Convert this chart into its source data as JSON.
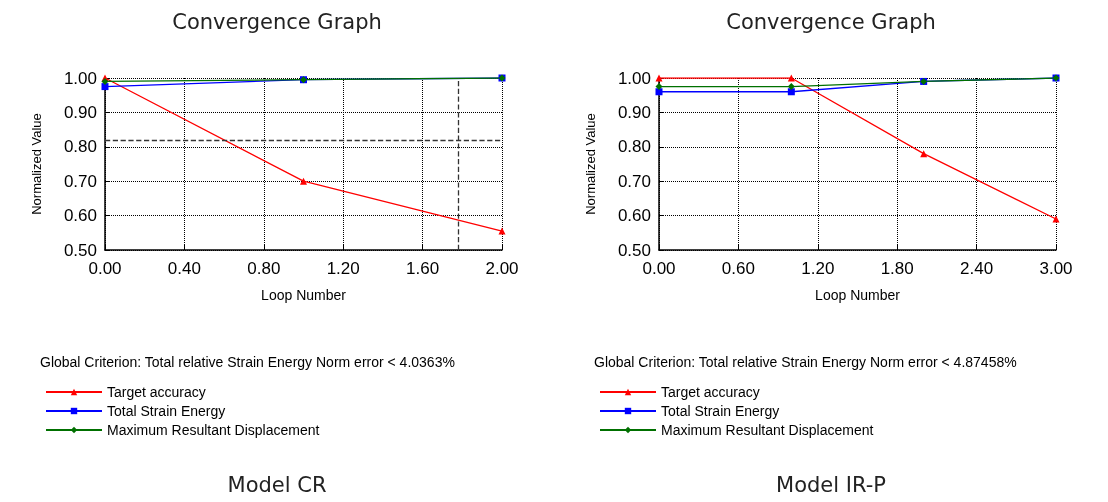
{
  "chart_data": [
    {
      "type": "line",
      "title": "Convergence Graph",
      "xlabel": "Loop Number",
      "ylabel": "Normalized Value",
      "x": [
        0,
        1,
        2
      ],
      "series": [
        {
          "name": "Target accuracy",
          "color": "#ff0000",
          "marker": "triangle",
          "values": [
            1.0,
            0.7,
            0.555
          ]
        },
        {
          "name": "Total Strain Energy",
          "color": "#0000ff",
          "marker": "square",
          "values": [
            0.975,
            0.995,
            1.0
          ]
        },
        {
          "name": "Maximum Resultant Displacement",
          "color": "#007000",
          "marker": "diamond",
          "values": [
            0.99,
            0.995,
            1.0
          ]
        }
      ],
      "xlim": [
        0,
        2
      ],
      "xticks": [
        {
          "value": 0,
          "label": "0.00"
        },
        {
          "value": 0.4,
          "label": "0.40"
        },
        {
          "value": 0.8,
          "label": "0.80"
        },
        {
          "value": 1.2,
          "label": "1.20"
        },
        {
          "value": 1.6,
          "label": "1.60"
        },
        {
          "value": 2,
          "label": "2.00"
        }
      ],
      "ylim": [
        0.5,
        1.0
      ],
      "yticks": [
        {
          "value": 0.5,
          "label": "0.50"
        },
        {
          "value": 0.6,
          "label": "0.60"
        },
        {
          "value": 0.7,
          "label": "0.70"
        },
        {
          "value": 0.8,
          "label": "0.80"
        },
        {
          "value": 0.9,
          "label": "0.90"
        },
        {
          "value": 1.0,
          "label": "1.00"
        }
      ],
      "ref_lines": [
        {
          "axis": "y",
          "value": 0.817,
          "color": "#333333",
          "line_style": "dashed"
        },
        {
          "axis": "x",
          "value": 1.78,
          "color": "#333333",
          "line_style": "dashed"
        }
      ],
      "grid": true,
      "legend": "bottom",
      "line_style": "solid",
      "annotations": [
        "Global Criterion: Total relative Strain Energy Norm error < 4.0363%",
        "Model CR"
      ]
    },
    {
      "type": "line",
      "title": "Convergence Graph",
      "xlabel": "Loop Number",
      "ylabel": "Normalized Value",
      "x": [
        0,
        1,
        2,
        3
      ],
      "series": [
        {
          "name": "Target accuracy",
          "color": "#ff0000",
          "marker": "triangle",
          "values": [
            1.0,
            1.0,
            0.78,
            0.59
          ]
        },
        {
          "name": "Total Strain Energy",
          "color": "#0000ff",
          "marker": "square",
          "values": [
            0.96,
            0.96,
            0.99,
            1.0
          ]
        },
        {
          "name": "Maximum Resultant Displacement",
          "color": "#007000",
          "marker": "diamond",
          "values": [
            0.975,
            0.975,
            0.99,
            1.0
          ]
        }
      ],
      "xlim": [
        0,
        3
      ],
      "xticks": [
        {
          "value": 0,
          "label": "0.00"
        },
        {
          "value": 0.6,
          "label": "0.60"
        },
        {
          "value": 1.2,
          "label": "1.20"
        },
        {
          "value": 1.8,
          "label": "1.80"
        },
        {
          "value": 2.4,
          "label": "2.40"
        },
        {
          "value": 3,
          "label": "3.00"
        }
      ],
      "ylim": [
        0.5,
        1.0
      ],
      "yticks": [
        {
          "value": 0.5,
          "label": "0.50"
        },
        {
          "value": 0.6,
          "label": "0.60"
        },
        {
          "value": 0.7,
          "label": "0.70"
        },
        {
          "value": 0.8,
          "label": "0.80"
        },
        {
          "value": 0.9,
          "label": "0.90"
        },
        {
          "value": 1.0,
          "label": "1.00"
        }
      ],
      "grid": true,
      "legend": "bottom",
      "line_style": "solid",
      "annotations": [
        "Global Criterion: Total relative Strain Energy Norm error < 4.87458%",
        "Model IR-P"
      ]
    }
  ]
}
